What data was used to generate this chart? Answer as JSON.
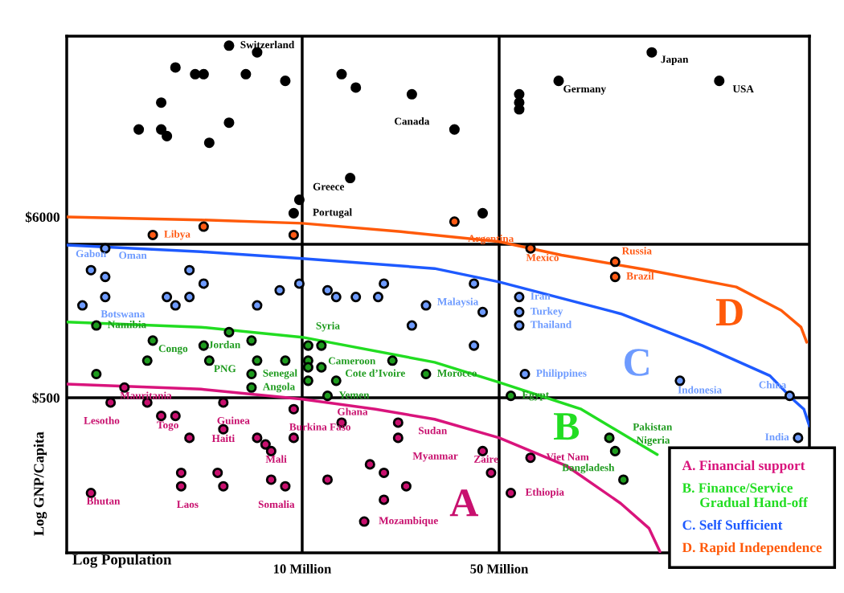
{
  "chart_data": {
    "type": "scatter",
    "xlabel": "Log Population",
    "ylabel": "Log GNP/Capita",
    "log": "xy",
    "xlim": [
      1.46,
      631
    ],
    "ylim": [
      59.3,
      71900
    ],
    "xticks": [
      {
        "value": 10,
        "label": "10 Million"
      },
      {
        "value": 50,
        "label": "50 Million"
      }
    ],
    "yticks": [
      {
        "value": 500,
        "label": "$500"
      },
      {
        "value": 6000,
        "label": "$6000"
      }
    ],
    "legend": "bottom right",
    "ref_lines": [
      {
        "axis": "x",
        "value": 10,
        "color": "#000000"
      },
      {
        "axis": "x",
        "value": 50,
        "color": "#000000"
      },
      {
        "axis": "y",
        "value": 4121,
        "color": "#000000"
      },
      {
        "axis": "y",
        "value": 500,
        "color": "#000000"
      }
    ],
    "series": [
      {
        "type": "line",
        "name": "A. Financial support",
        "color": "#d9147c",
        "marker": "none",
        "x": [
          1.46,
          4.37,
          10,
          18.2,
          29.5,
          50,
          87.1,
          135,
          170,
          186
        ],
        "values": [
          603,
          562,
          490,
          427,
          372,
          288,
          195,
          117,
          83.2,
          60.3
        ]
      },
      {
        "type": "line",
        "name": "B. Finance/Service\n     Gradual Hand-off",
        "color": "#22dd22",
        "marker": "none",
        "x": [
          1.46,
          4.37,
          10,
          29.5,
          50,
          97.7,
          182
        ],
        "values": [
          1413,
          1318,
          1148,
          813,
          617,
          427,
          229
        ]
      },
      {
        "type": "line",
        "name": "C. Self Sufficient",
        "color": "#1e5aff",
        "marker": "none",
        "x": [
          1.46,
          4.37,
          10,
          29.5,
          50,
          135,
          263,
          457,
          550,
          603,
          631
        ],
        "values": [
          4074,
          3715,
          3388,
          2951,
          2455,
          1585,
          1023,
          676,
          490,
          427,
          339
        ]
      },
      {
        "type": "line",
        "name": "D. Rapid Independence",
        "color": "#ff5a0a",
        "marker": "none",
        "x": [
          1.46,
          4.37,
          10,
          22.4,
          50,
          83.2,
          170,
          347,
          501,
          589,
          617
        ],
        "values": [
          6000,
          5754,
          5495,
          4898,
          4266,
          3548,
          2884,
          2291,
          1660,
          1318,
          1072
        ]
      },
      {
        "color": "#000000",
        "marker": "circle",
        "x": [
          5.5,
          6.92,
          3.55,
          4.17,
          4.47,
          6.31,
          8.71,
          13.8,
          15.5,
          24.5,
          3.16,
          2.63,
          3.16,
          3.31,
          5.5,
          4.68,
          14.8,
          9.77,
          9.33,
          34.7,
          43.7,
          58.9,
          58.9,
          58.9,
          81.3,
          174,
          302
        ],
        "values": [
          63100,
          57540,
          46770,
          42660,
          42660,
          42660,
          38900,
          42660,
          35480,
          32360,
          28840,
          19950,
          19950,
          18200,
          21880,
          16600,
          10230,
          7586,
          6310,
          19950,
          6310,
          32360,
          28840,
          26300,
          38900,
          57540,
          38900
        ]
      },
      {
        "color": "#ff5a14",
        "marker": "circle",
        "x": [
          2.95,
          4.47,
          9.33,
          34.7,
          64.6,
          129,
          129
        ],
        "values": [
          4677,
          5248,
          4677,
          5623,
          3890,
          3236,
          2630
        ]
      },
      {
        "color": "#6e9bff",
        "marker": "circle",
        "x": [
          2.0,
          1.78,
          2.0,
          3.98,
          4.47,
          9.77,
          8.32,
          12.3,
          13.2,
          15.5,
          18.6,
          19.5,
          2.0,
          3.31,
          3.98,
          3.55,
          6.92,
          1.66,
          27.5,
          24.5,
          40.7,
          58.9,
          43.7,
          58.9,
          58.9,
          40.7,
          61.7,
          219,
          537,
          575
        ],
        "values": [
          3890,
          2884,
          2630,
          2884,
          2399,
          2399,
          2188,
          2188,
          1995,
          1995,
          1995,
          2399,
          1995,
          1995,
          1995,
          1778,
          1778,
          1778,
          1778,
          1349,
          2399,
          1995,
          1622,
          1622,
          1349,
          1023,
          692,
          631,
          513,
          288
        ]
      },
      {
        "color": "#1e9b1e",
        "marker": "circle",
        "x": [
          1.86,
          2.95,
          5.5,
          6.61,
          4.47,
          10.5,
          11.7,
          2.82,
          4.68,
          6.92,
          8.71,
          10.5,
          10.5,
          11.7,
          20.9,
          1.86,
          6.61,
          10.5,
          13.2,
          27.5,
          6.61,
          12.3,
          55,
          123,
          129,
          138
        ],
        "values": [
          1349,
          1096,
          1230,
          1096,
          1023,
          1023,
          1023,
          832,
          832,
          832,
          832,
          832,
          759,
          759,
          832,
          692,
          692,
          631,
          631,
          692,
          575,
          513,
          513,
          288,
          240,
          162
        ]
      },
      {
        "color": "#c8106e",
        "marker": "circle",
        "x": [
          2.34,
          2.09,
          2.82,
          5.25,
          9.33,
          3.16,
          3.55,
          13.8,
          21.9,
          5.25,
          3.98,
          6.92,
          9.33,
          21.9,
          7.41,
          7.76,
          17.4,
          19.5,
          3.72,
          5.01,
          7.76,
          12.3,
          3.72,
          5.25,
          8.71,
          23.4,
          1.78,
          19.5,
          16.6,
          43.7,
          46.8,
          64.6,
          55
        ],
        "values": [
          575,
          468,
          468,
          468,
          427,
          389,
          389,
          355,
          355,
          324,
          288,
          288,
          288,
          288,
          263,
          240,
          200,
          178,
          178,
          178,
          162,
          162,
          148,
          148,
          148,
          148,
          135,
          123,
          91.2,
          240,
          178,
          219,
          135
        ]
      }
    ],
    "annotations": [
      {
        "text": "Switzerland",
        "x": 5.5,
        "y": 63100
      },
      {
        "text": "Japan",
        "x": 174,
        "y": 57540
      },
      {
        "text": "Germany",
        "x": 81.3,
        "y": 38900
      },
      {
        "text": "USA",
        "x": 302,
        "y": 38900
      },
      {
        "text": "Canada",
        "x": 24.5,
        "y": 32360
      },
      {
        "text": "Greece",
        "x": 9.77,
        "y": 7586
      },
      {
        "text": "Portugal",
        "x": 9.33,
        "y": 6310
      },
      {
        "text": "Libya",
        "x": 2.95,
        "y": 4677
      },
      {
        "text": "Argentina",
        "x": 34.7,
        "y": 5623
      },
      {
        "text": "Mexico",
        "x": 64.6,
        "y": 3890
      },
      {
        "text": "Russia",
        "x": 129,
        "y": 3236
      },
      {
        "text": "Brazil",
        "x": 129,
        "y": 2630
      },
      {
        "text": "Gabon",
        "x": 1.78,
        "y": 2884
      },
      {
        "text": "Oman",
        "x": 2.0,
        "y": 3890
      },
      {
        "text": "Botswana",
        "x": 2.0,
        "y": 1995
      },
      {
        "text": "Malaysia",
        "x": 40.7,
        "y": 2399
      },
      {
        "text": "Iran",
        "x": 58.9,
        "y": 1995
      },
      {
        "text": "Turkey",
        "x": 58.9,
        "y": 1622
      },
      {
        "text": "Thailand",
        "x": 58.9,
        "y": 1349
      },
      {
        "text": "Philippines",
        "x": 61.7,
        "y": 692
      },
      {
        "text": "Indonesia",
        "x": 219,
        "y": 631
      },
      {
        "text": "China",
        "x": 537,
        "y": 513
      },
      {
        "text": "India",
        "x": 575,
        "y": 288
      },
      {
        "text": "Namibia",
        "x": 1.86,
        "y": 1349
      },
      {
        "text": "Congo",
        "x": 2.95,
        "y": 1096
      },
      {
        "text": "Jordan",
        "x": 4.47,
        "y": 1023
      },
      {
        "text": "PNG",
        "x": 4.68,
        "y": 832
      },
      {
        "text": "Syria",
        "x": 11.7,
        "y": 1023
      },
      {
        "text": "Cameroon",
        "x": 11.7,
        "y": 759
      },
      {
        "text": "Cote d’Ivoire",
        "x": 13.2,
        "y": 631
      },
      {
        "text": "Senegal",
        "x": 6.61,
        "y": 692
      },
      {
        "text": "Angola",
        "x": 6.61,
        "y": 575
      },
      {
        "text": "Yemen",
        "x": 12.3,
        "y": 513
      },
      {
        "text": "Morocco",
        "x": 27.5,
        "y": 692
      },
      {
        "text": "Egypt",
        "x": 55,
        "y": 513
      },
      {
        "text": "Pakistan",
        "x": 123,
        "y": 288
      },
      {
        "text": "Nigeria",
        "x": 129,
        "y": 240
      },
      {
        "text": "Bangladesh",
        "x": 138,
        "y": 162
      },
      {
        "text": "Mauritania",
        "x": 2.34,
        "y": 575
      },
      {
        "text": "Lesotho",
        "x": 2.09,
        "y": 468
      },
      {
        "text": "Togo",
        "x": 3.16,
        "y": 389
      },
      {
        "text": "Guinea",
        "x": 5.25,
        "y": 468
      },
      {
        "text": "Haiti",
        "x": 5.25,
        "y": 324
      },
      {
        "text": "Burkina Faso",
        "x": 9.33,
        "y": 288
      },
      {
        "text": "Ghana",
        "x": 13.8,
        "y": 355
      },
      {
        "text": "Sudan",
        "x": 21.9,
        "y": 355
      },
      {
        "text": "Myanmar",
        "x": 21.9,
        "y": 288
      },
      {
        "text": "Mali",
        "x": 7.76,
        "y": 240
      },
      {
        "text": "Bhutan",
        "x": 1.78,
        "y": 135
      },
      {
        "text": "Laos",
        "x": 3.72,
        "y": 148
      },
      {
        "text": "Somalia",
        "x": 8.71,
        "y": 148
      },
      {
        "text": "Mozambique",
        "x": 16.6,
        "y": 91.2
      },
      {
        "text": "Zaire",
        "x": 43.7,
        "y": 240
      },
      {
        "text": "Viet Nam",
        "x": 64.6,
        "y": 219
      },
      {
        "text": "Ethiopia",
        "x": 55,
        "y": 135
      },
      "A",
      "B",
      "C",
      "D"
    ]
  }
}
